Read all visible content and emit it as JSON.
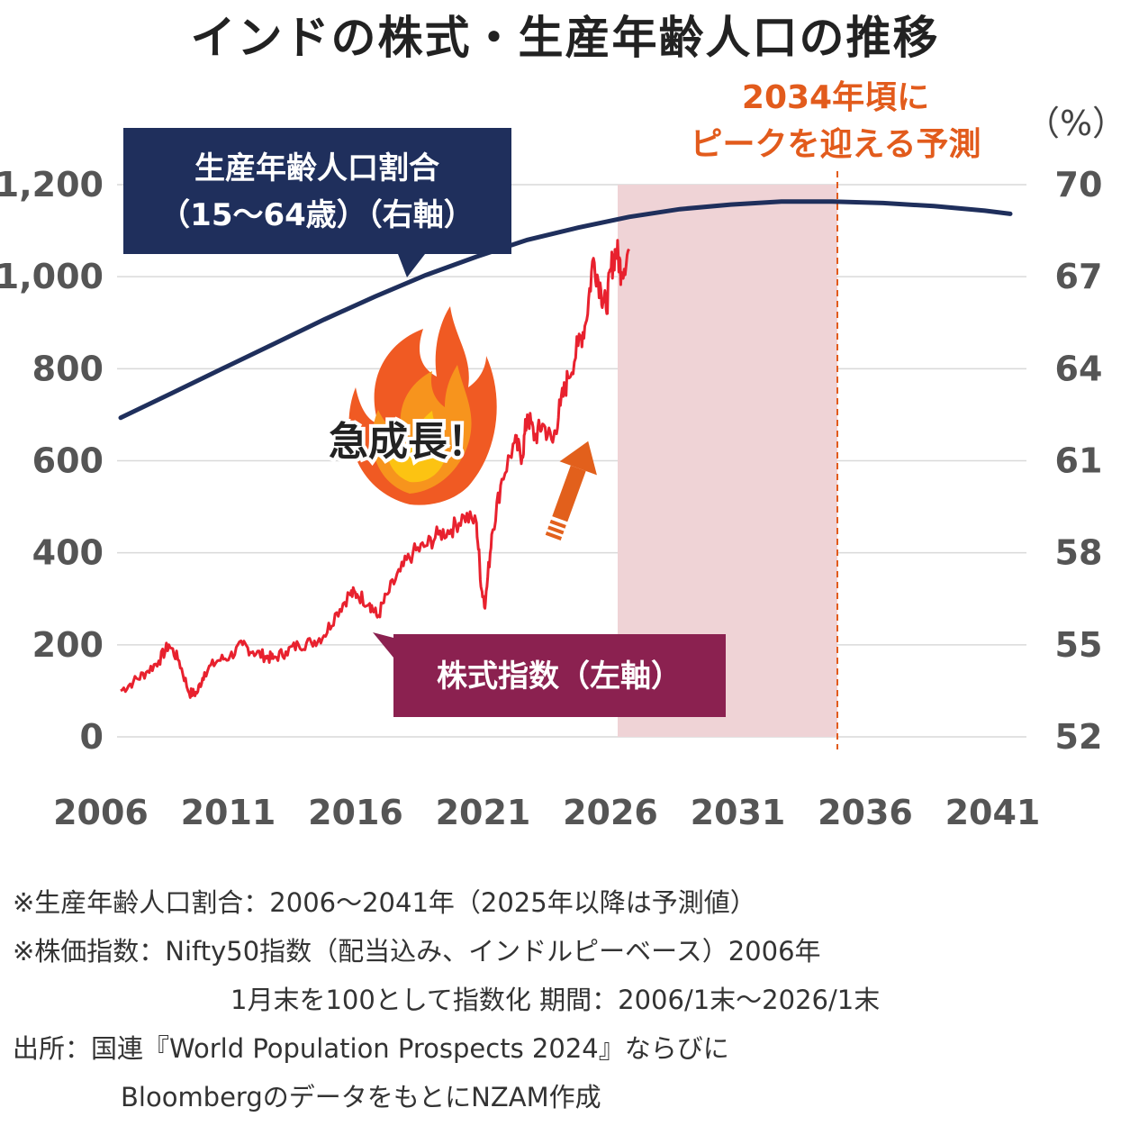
{
  "title": "インドの株式・生産年齢人口の推移",
  "chart_data": {
    "type": "line",
    "x_tick_labels": [
      "2006",
      "2011",
      "2016",
      "2021",
      "2026",
      "2031",
      "2036",
      "2041"
    ],
    "x_range": [
      2006,
      2042
    ],
    "y_left": {
      "range": [
        0,
        1200
      ],
      "ticks": [
        "0",
        "200",
        "400",
        "600",
        "800",
        "1,000",
        "1,200"
      ]
    },
    "y_right": {
      "range": [
        52,
        70
      ],
      "unit": "（%）",
      "ticks": [
        "52",
        "55",
        "58",
        "61",
        "64",
        "67",
        "70"
      ]
    },
    "grid": true,
    "series": [
      {
        "name": "生産年齢人口割合（15〜64歳）（右軸）",
        "axis": "right",
        "color": "#1f2f5c",
        "x": [
          2006,
          2008,
          2010,
          2012,
          2014,
          2016,
          2018,
          2020,
          2022,
          2024,
          2026,
          2028,
          2030,
          2032,
          2034,
          2036,
          2038,
          2040,
          2041
        ],
        "y": [
          62.4,
          63.2,
          64.0,
          64.8,
          65.6,
          66.35,
          67.05,
          67.65,
          68.2,
          68.6,
          68.95,
          69.2,
          69.35,
          69.45,
          69.45,
          69.4,
          69.3,
          69.15,
          69.05
        ]
      },
      {
        "name": "株式指数（左軸）",
        "axis": "left",
        "color": "#e8212e",
        "x": [
          2006.0,
          2006.5,
          2007.0,
          2007.5,
          2007.9,
          2008.3,
          2008.7,
          2009.0,
          2009.3,
          2009.8,
          2010.3,
          2010.8,
          2011.2,
          2011.7,
          2012.0,
          2012.5,
          2013.0,
          2013.5,
          2014.0,
          2014.5,
          2015.0,
          2015.3,
          2015.8,
          2016.1,
          2016.5,
          2017.0,
          2017.5,
          2018.0,
          2018.5,
          2019.0,
          2019.5,
          2020.0,
          2020.2,
          2020.35,
          2020.6,
          2021.0,
          2021.5,
          2021.8,
          2022.0,
          2022.3,
          2022.6,
          2023.0,
          2023.3,
          2023.6,
          2024.0,
          2024.3,
          2024.6,
          2024.9,
          2025.1,
          2025.3,
          2025.5,
          2025.7,
          2026.0
        ],
        "y": [
          100,
          120,
          140,
          165,
          200,
          165,
          95,
          95,
          140,
          165,
          175,
          200,
          185,
          175,
          170,
          185,
          200,
          205,
          220,
          270,
          310,
          310,
          290,
          260,
          310,
          360,
          400,
          415,
          440,
          450,
          480,
          465,
          320,
          290,
          440,
          560,
          640,
          610,
          700,
          650,
          680,
          640,
          720,
          780,
          850,
          900,
          1040,
          970,
          930,
          1020,
          1060,
          1010,
          1060
        ]
      }
    ],
    "annotations": {
      "peak_label_line1": "2034年頃に",
      "peak_label_line2": "ピークを迎える予測",
      "peak_year": 2034,
      "forecast_shade_start": 2026,
      "burst_text": "急成長！"
    }
  },
  "notes": {
    "line1": "※生産年齢人口割合：2006〜2041年（2025年以降は予測値）",
    "line2": "※株価指数：Nifty50指数（配当込み、インドルピーベース）2006年",
    "line3": "1月末を100として指数化 期間：2006/1末〜2026/1末",
    "line4": "出所：国連『World Population Prospects 2024』ならびに",
    "line5": "BloombergのデータをもとにNZAM作成"
  }
}
